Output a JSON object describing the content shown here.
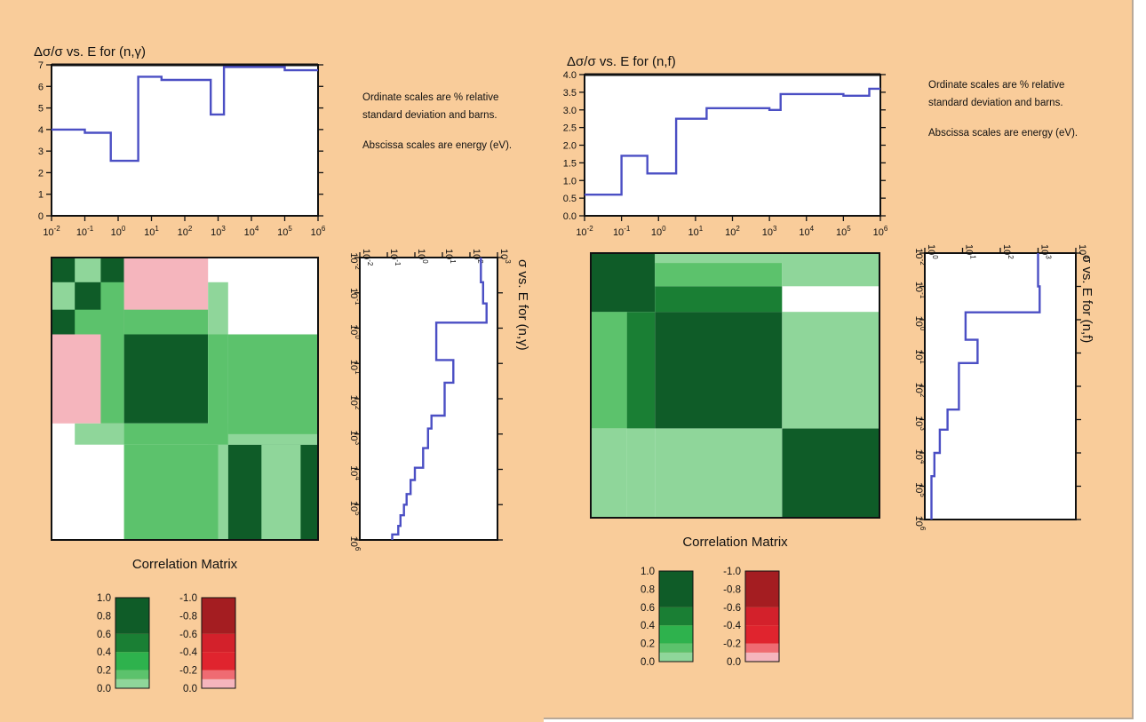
{
  "colors": {
    "background": "#f9cc9a",
    "line": "#4b4fc4",
    "corr_pos": [
      "#8fd69a",
      "#5cc26c",
      "#2eb24d",
      "#1a7f34",
      "#0f5c28"
    ],
    "corr_neg": [
      "#f5b5bd",
      "#ef6b72",
      "#e0242e",
      "#d3212b",
      "#a41d21"
    ]
  },
  "chart_data": [
    {
      "id": "ng",
      "type": "line",
      "title": "Δσ/σ vs. E for (n,γ)",
      "xscale": "log",
      "xlim": [
        0.01,
        1000000
      ],
      "ylim": [
        0,
        7
      ],
      "yticks": [
        "0",
        "1",
        "2",
        "3",
        "4",
        "5",
        "6",
        "7"
      ],
      "xticks": [
        "10-2",
        "10-1",
        "100",
        "101",
        "102",
        "103",
        "104",
        "105",
        "106"
      ],
      "steps": [
        {
          "e_lo": 0.01,
          "e_hi": 0.1,
          "value": 4.0
        },
        {
          "e_lo": 0.1,
          "e_hi": 0.6,
          "value": 3.85
        },
        {
          "e_lo": 0.6,
          "e_hi": 4,
          "value": 2.55
        },
        {
          "e_lo": 4,
          "e_hi": 20,
          "value": 6.45
        },
        {
          "e_lo": 20,
          "e_hi": 600,
          "value": 6.3
        },
        {
          "e_lo": 600,
          "e_hi": 1500,
          "value": 4.7
        },
        {
          "e_lo": 1500,
          "e_hi": 100000,
          "value": 6.9
        },
        {
          "e_lo": 100000,
          "e_hi": 1000000,
          "value": 6.75
        }
      ],
      "notes": [
        "Ordinate scales are % relative",
        "standard deviation and barns.",
        "Abscissa scales are energy (eV)."
      ]
    },
    {
      "id": "ng_sigma",
      "type": "line",
      "title": "σ vs. E for (n,γ)",
      "orientation": "rotated",
      "xscale": "log",
      "yscale": "log",
      "sigma_lim": [
        0.01,
        1000
      ],
      "energy_lim": [
        0.01,
        1000000
      ],
      "sigma_ticks": [
        "10-2",
        "10-1",
        "100",
        "101",
        "102",
        "103"
      ],
      "energy_ticks": [
        "10-2",
        "10-1",
        "100",
        "101",
        "102",
        "103",
        "104",
        "105",
        "106"
      ],
      "steps": [
        {
          "e_lo": 0.01,
          "e_hi": 0.05,
          "sigma": 250
        },
        {
          "e_lo": 0.05,
          "e_hi": 0.2,
          "sigma": 300
        },
        {
          "e_lo": 0.2,
          "e_hi": 0.7,
          "sigma": 400
        },
        {
          "e_lo": 0.7,
          "e_hi": 8,
          "sigma": 6
        },
        {
          "e_lo": 8,
          "e_hi": 35,
          "sigma": 25
        },
        {
          "e_lo": 35,
          "e_hi": 300,
          "sigma": 12
        },
        {
          "e_lo": 300,
          "e_hi": 700,
          "sigma": 4
        },
        {
          "e_lo": 700,
          "e_hi": 2500,
          "sigma": 3
        },
        {
          "e_lo": 2500,
          "e_hi": 9000,
          "sigma": 2
        },
        {
          "e_lo": 9000,
          "e_hi": 20000,
          "sigma": 1
        },
        {
          "e_lo": 20000,
          "e_hi": 50000,
          "sigma": 0.7
        },
        {
          "e_lo": 50000,
          "e_hi": 100000,
          "sigma": 0.5
        },
        {
          "e_lo": 100000,
          "e_hi": 200000,
          "sigma": 0.4
        },
        {
          "e_lo": 200000,
          "e_hi": 400000,
          "sigma": 0.3
        },
        {
          "e_lo": 400000,
          "e_hi": 700000,
          "sigma": 0.25
        },
        {
          "e_lo": 700000,
          "e_hi": 1000000,
          "sigma": 0.15
        }
      ]
    },
    {
      "id": "ng_corr",
      "type": "heatmap",
      "title": "Correlation Matrix",
      "cells": [
        {
          "e": [
            0.01,
            1.5
          ],
          "f": [
            0.01,
            1.5
          ],
          "value": 1.0
        },
        {
          "e": [
            0.01,
            1.5
          ],
          "f": [
            1.5,
            500
          ],
          "value": -0.1
        },
        {
          "e": [
            1.5,
            500
          ],
          "f": [
            0.01,
            1.5
          ],
          "value": -0.1
        },
        {
          "e": [
            0.01,
            0.05
          ],
          "f": [
            0.05,
            0.3
          ],
          "value": 0.1
        },
        {
          "e": [
            0.05,
            0.3
          ],
          "f": [
            0.01,
            0.05
          ],
          "value": 0.1
        },
        {
          "e": [
            0.05,
            1.5
          ],
          "f": [
            0.3,
            1.5
          ],
          "value": 0.3
        },
        {
          "e": [
            0.3,
            1.5
          ],
          "f": [
            0.05,
            1.5
          ],
          "value": 0.3
        },
        {
          "e": [
            1.5,
            500
          ],
          "f": [
            1.5,
            500
          ],
          "value": 1.0
        },
        {
          "e": [
            1.5,
            500
          ],
          "f": [
            0.3,
            1.5
          ],
          "value": 0.3
        },
        {
          "e": [
            0.3,
            1.5
          ],
          "f": [
            1.5,
            500
          ],
          "value": 0.3
        },
        {
          "e": [
            1.5,
            500
          ],
          "f": [
            500,
            2000
          ],
          "value": 0.1
        },
        {
          "e": [
            500,
            2000
          ],
          "f": [
            1.5,
            500
          ],
          "value": 0.1
        },
        {
          "e": [
            1.5,
            2000
          ],
          "f": [
            2000,
            1000000
          ],
          "value": 0.3
        },
        {
          "e": [
            2000,
            1000000
          ],
          "f": [
            1.5,
            2000
          ],
          "value": 0.3
        },
        {
          "e": [
            1.5,
            2000
          ],
          "f": [
            500,
            2000
          ],
          "value": 0.3
        },
        {
          "e": [
            500,
            2000
          ],
          "f": [
            1.5,
            2000
          ],
          "value": 0.3
        },
        {
          "e": [
            0.05,
            1.5
          ],
          "f": [
            500,
            2000
          ],
          "value": 0.1
        },
        {
          "e": [
            500,
            2000
          ],
          "f": [
            0.05,
            1.5
          ],
          "value": 0.1
        },
        {
          "e": [
            2000,
            1000000
          ],
          "f": [
            2000,
            1000000
          ],
          "value": 1.0
        },
        {
          "e": [
            2000,
            1000000
          ],
          "f": [
            1000,
            2000
          ],
          "value": 0.1
        },
        {
          "e": [
            1000,
            2000
          ],
          "f": [
            2000,
            1000000
          ],
          "value": 0.1
        },
        {
          "e": [
            20000,
            300000
          ],
          "f": [
            2000,
            1000000
          ],
          "value": 0.1
        }
      ]
    },
    {
      "id": "nf",
      "type": "line",
      "title": "Δσ/σ vs. E for (n,f)",
      "xscale": "log",
      "xlim": [
        0.01,
        1000000
      ],
      "ylim": [
        0,
        4
      ],
      "yticks": [
        "0.0",
        "0.5",
        "1.0",
        "1.5",
        "2.0",
        "2.5",
        "3.0",
        "3.5",
        "4.0"
      ],
      "xticks": [
        "10-2",
        "10-1",
        "100",
        "101",
        "102",
        "103",
        "104",
        "105",
        "106"
      ],
      "steps": [
        {
          "e_lo": 0.01,
          "e_hi": 0.1,
          "value": 0.6
        },
        {
          "e_lo": 0.1,
          "e_hi": 0.5,
          "value": 1.7
        },
        {
          "e_lo": 0.5,
          "e_hi": 3,
          "value": 1.2
        },
        {
          "e_lo": 3,
          "e_hi": 20,
          "value": 2.75
        },
        {
          "e_lo": 20,
          "e_hi": 1000,
          "value": 3.05
        },
        {
          "e_lo": 1000,
          "e_hi": 2000,
          "value": 3.0
        },
        {
          "e_lo": 2000,
          "e_hi": 100000,
          "value": 3.45
        },
        {
          "e_lo": 100000,
          "e_hi": 500000,
          "value": 3.4
        },
        {
          "e_lo": 500000,
          "e_hi": 1000000,
          "value": 3.6
        }
      ],
      "notes": [
        "Ordinate scales are % relative",
        "standard deviation and barns.",
        "Abscissa scales are energy (eV)."
      ]
    },
    {
      "id": "nf_sigma",
      "type": "line",
      "title": "σ vs. E for (n,f)",
      "orientation": "rotated",
      "xscale": "log",
      "yscale": "log",
      "sigma_lim": [
        1,
        10000
      ],
      "energy_lim": [
        0.01,
        1000000
      ],
      "sigma_ticks": [
        "100",
        "101",
        "102",
        "103",
        "104"
      ],
      "energy_ticks": [
        "10-2",
        "10-1",
        "100",
        "101",
        "102",
        "103",
        "104",
        "105",
        "106"
      ],
      "steps": [
        {
          "e_lo": 0.01,
          "e_hi": 0.1,
          "sigma": 1000
        },
        {
          "e_lo": 0.1,
          "e_hi": 0.6,
          "sigma": 1100
        },
        {
          "e_lo": 0.6,
          "e_hi": 4,
          "sigma": 12
        },
        {
          "e_lo": 4,
          "e_hi": 20,
          "sigma": 25
        },
        {
          "e_lo": 20,
          "e_hi": 500,
          "sigma": 8
        },
        {
          "e_lo": 500,
          "e_hi": 2000,
          "sigma": 4
        },
        {
          "e_lo": 2000,
          "e_hi": 10000,
          "sigma": 2.5
        },
        {
          "e_lo": 10000,
          "e_hi": 50000,
          "sigma": 1.8
        },
        {
          "e_lo": 50000,
          "e_hi": 1000000,
          "sigma": 1.5
        }
      ]
    },
    {
      "id": "nf_corr",
      "type": "heatmap",
      "title": "Correlation Matrix",
      "cells": [
        {
          "e": [
            0.01,
            0.6
          ],
          "f": [
            0.01,
            0.6
          ],
          "value": 1.0
        },
        {
          "e": [
            0.01,
            0.1
          ],
          "f": [
            0.1,
            0.6
          ],
          "value": 1.0
        },
        {
          "e": [
            0.6,
            2000
          ],
          "f": [
            0.6,
            2000
          ],
          "value": 1.0
        },
        {
          "e": [
            0.1,
            0.6
          ],
          "f": [
            0.6,
            2000
          ],
          "value": 0.6
        },
        {
          "e": [
            0.6,
            2000
          ],
          "f": [
            0.1,
            0.6
          ],
          "value": 0.6
        },
        {
          "e": [
            0.01,
            0.1
          ],
          "f": [
            0.6,
            2000
          ],
          "value": 0.3
        },
        {
          "e": [
            0.6,
            2000
          ],
          "f": [
            0.01,
            0.1
          ],
          "value": 0.3
        },
        {
          "e": [
            0.01,
            0.1
          ],
          "f": [
            2000,
            1000000
          ],
          "value": 0.1
        },
        {
          "e": [
            2000,
            1000000
          ],
          "f": [
            0.01,
            0.1
          ],
          "value": 0.1
        },
        {
          "e": [
            0.1,
            0.6
          ],
          "f": [
            2000,
            1000000
          ],
          "value": 0.1
        },
        {
          "e": [
            0.6,
            2000
          ],
          "f": [
            2000,
            1000000
          ],
          "value": 0.1
        },
        {
          "e": [
            2000,
            1000000
          ],
          "f": [
            0.6,
            2000
          ],
          "value": 0.1
        },
        {
          "e": [
            2000,
            1000000
          ],
          "f": [
            2000,
            1000000
          ],
          "value": 1.0
        },
        {
          "e": [
            0.6,
            2000
          ],
          "f": [
            0.01,
            0.02
          ],
          "value": 0.1
        }
      ]
    }
  ],
  "legend": {
    "pos_labels": [
      "1.0",
      "0.8",
      "0.6",
      "0.4",
      "0.2",
      "0.0"
    ],
    "neg_labels": [
      "-1.0",
      "-0.8",
      "-0.6",
      "-0.4",
      "-0.2",
      "0.0"
    ]
  }
}
